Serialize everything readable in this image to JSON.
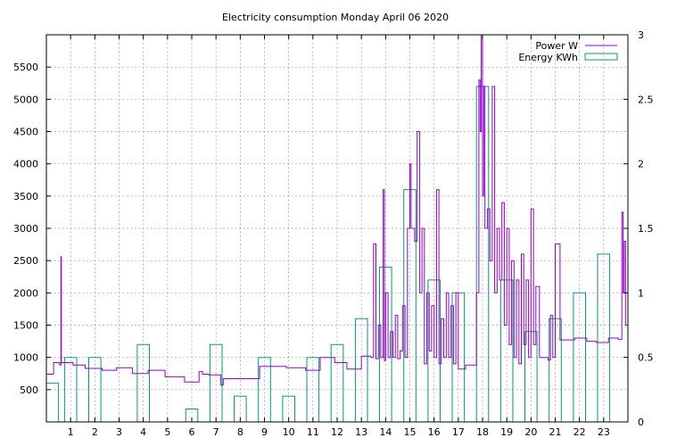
{
  "chart_data": {
    "type": "line",
    "title": "Electricity consumption Monday April 06 2020",
    "xlim": [
      0,
      24
    ],
    "ylim": [
      0,
      6000
    ],
    "y2lim": [
      0,
      3
    ],
    "grid": true,
    "legend_position": "top-right",
    "x_ticks": [
      1,
      2,
      3,
      4,
      5,
      6,
      7,
      8,
      9,
      10,
      11,
      12,
      13,
      14,
      15,
      16,
      17,
      18,
      19,
      20,
      21,
      22,
      23
    ],
    "y_ticks": [
      500,
      1000,
      1500,
      2000,
      2500,
      3000,
      3500,
      4000,
      4500,
      5000,
      5500
    ],
    "y2_ticks": [
      "0",
      "0.5",
      "1",
      "1.5",
      "2",
      "2.5",
      "3"
    ],
    "series": [
      {
        "name": "Power W",
        "color": "#9400d3",
        "axis": "y1",
        "style": "steps",
        "x": [
          0,
          0.3,
          0.55,
          0.6,
          0.62,
          1.1,
          1.6,
          2.3,
          2.9,
          3.55,
          4.2,
          4.9,
          5.7,
          6.3,
          6.45,
          6.7,
          7.2,
          7.3,
          7.9,
          8.8,
          9.9,
          10.7,
          11.3,
          11.9,
          12.4,
          13.0,
          13.4,
          13.5,
          13.6,
          13.7,
          13.8,
          13.9,
          13.95,
          14.0,
          14.1,
          14.2,
          14.3,
          14.4,
          14.5,
          14.6,
          14.7,
          14.8,
          14.9,
          15.0,
          15.05,
          15.1,
          15.2,
          15.3,
          15.4,
          15.5,
          15.6,
          15.7,
          15.8,
          15.9,
          16.0,
          16.1,
          16.2,
          16.3,
          16.4,
          16.5,
          16.6,
          16.7,
          16.8,
          16.9,
          17.0,
          17.3,
          17.75,
          17.85,
          17.9,
          17.95,
          18.0,
          18.05,
          18.1,
          18.2,
          18.3,
          18.4,
          18.5,
          18.6,
          18.7,
          18.8,
          18.9,
          19.0,
          19.1,
          19.2,
          19.3,
          19.4,
          19.5,
          19.6,
          19.7,
          19.8,
          19.9,
          20.0,
          20.1,
          20.2,
          20.35,
          20.7,
          20.8,
          20.9,
          21.0,
          21.2,
          21.8,
          22.3,
          22.7,
          23.2,
          23.6,
          23.75,
          23.8,
          23.85,
          23.9,
          24.0
        ],
        "values": [
          740,
          920,
          880,
          2560,
          920,
          880,
          830,
          800,
          840,
          750,
          800,
          700,
          620,
          780,
          740,
          730,
          570,
          670,
          670,
          860,
          840,
          800,
          1000,
          920,
          820,
          1020,
          1000,
          2760,
          980,
          1500,
          1000,
          3600,
          950,
          2000,
          1000,
          1400,
          1000,
          1650,
          980,
          1100,
          1800,
          1000,
          3000,
          4000,
          3000,
          3000,
          2800,
          4500,
          2000,
          3000,
          900,
          2000,
          1100,
          1800,
          1000,
          3600,
          900,
          1600,
          1000,
          2000,
          1000,
          1800,
          900,
          2000,
          820,
          880,
          2000,
          5300,
          4500,
          6000,
          3500,
          5200,
          3000,
          3300,
          2500,
          5200,
          2000,
          3000,
          2200,
          3400,
          1500,
          3000,
          1200,
          2500,
          1000,
          2200,
          900,
          2600,
          1200,
          2200,
          1000,
          3300,
          1200,
          2100,
          1000,
          960,
          1650,
          1000,
          2760,
          1270,
          1300,
          1250,
          1230,
          1300,
          1280,
          3250,
          2000,
          2800,
          1500,
          1500
        ]
      },
      {
        "name": "Energy KWh",
        "color": "#009e73",
        "axis": "y2",
        "style": "boxes",
        "x": [
          0,
          1,
          2,
          3,
          4,
          5,
          6,
          7,
          8,
          9,
          10,
          11,
          12,
          13,
          14,
          15,
          16,
          17,
          18,
          19,
          20,
          21,
          22,
          23
        ],
        "values": [
          0.3,
          0.5,
          0.5,
          0.0,
          0.6,
          0.0,
          0.1,
          0.6,
          0.2,
          0.5,
          0.2,
          0.5,
          0.6,
          0.8,
          1.2,
          1.8,
          1.1,
          1.0,
          2.6,
          1.1,
          0.7,
          0.8,
          1.0,
          1.3
        ]
      }
    ]
  }
}
